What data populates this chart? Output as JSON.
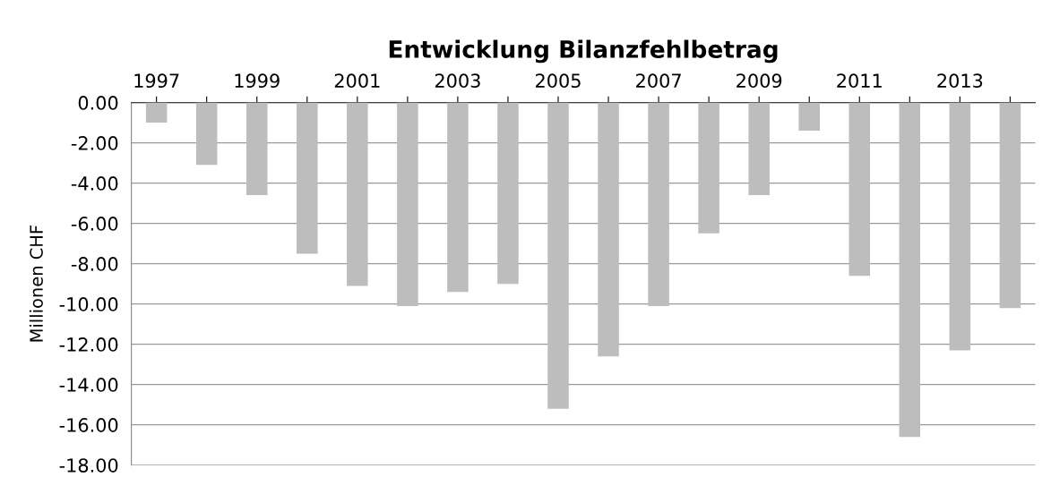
{
  "chart_data": {
    "type": "bar",
    "title": "Entwicklung Bilanzfehlbetrag",
    "ylabel": "Millionen CHF",
    "categories": [
      "1997",
      null,
      "1999",
      null,
      "2001",
      null,
      "2003",
      null,
      "2005",
      null,
      "2007",
      null,
      "2009",
      null,
      "2011",
      null,
      "2013",
      null
    ],
    "series": [
      {
        "color": "#bdbdbd",
        "values": [
          -1.0,
          -3.1,
          -4.6,
          -7.5,
          -9.1,
          -10.1,
          -9.4,
          -9.0,
          -15.2,
          -12.6,
          -10.1,
          -6.5,
          -4.6,
          -1.4,
          -8.6,
          -16.6,
          -12.3,
          -10.2
        ]
      }
    ],
    "ylim": [
      -18,
      0
    ],
    "yticks": [
      {
        "value": 0,
        "label": "0.00"
      },
      {
        "value": -2,
        "label": "-2.00"
      },
      {
        "value": -4,
        "label": "-4.00"
      },
      {
        "value": -6,
        "label": "-6.00"
      },
      {
        "value": -8,
        "label": "-8.00"
      },
      {
        "value": -10,
        "label": "-10.00"
      },
      {
        "value": -12,
        "label": "-12.00"
      },
      {
        "value": -14,
        "label": "-14.00"
      },
      {
        "value": -16,
        "label": "-16.00"
      },
      {
        "value": -18,
        "label": "-18.00"
      }
    ],
    "grid": "y",
    "legend": false
  }
}
